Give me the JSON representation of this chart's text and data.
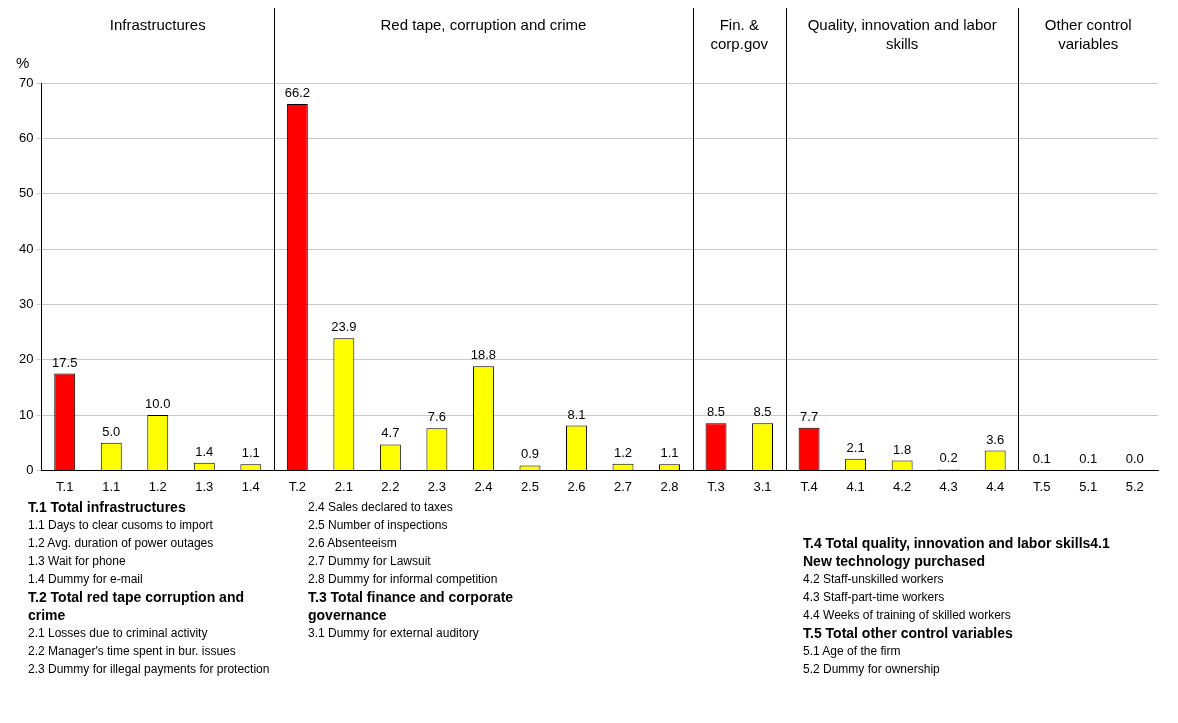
{
  "chart_data": {
    "type": "bar",
    "ylabel": "%",
    "categories": [
      "T.1",
      "1.1",
      "1.2",
      "1.3",
      "1.4",
      "T.2",
      "2.1",
      "2.2",
      "2.3",
      "2.4",
      "2.5",
      "2.6",
      "2.7",
      "2.8",
      "T.3",
      "3.1",
      "T.4",
      "4.1",
      "4.2",
      "4.3",
      "4.4",
      "T.5",
      "5.1",
      "5.2"
    ],
    "values": [
      17.5,
      5.0,
      10.0,
      1.4,
      1.1,
      66.2,
      23.9,
      4.7,
      7.6,
      18.8,
      0.9,
      8.1,
      1.2,
      1.1,
      8.5,
      8.5,
      7.7,
      2.1,
      1.8,
      0.2,
      3.6,
      0.1,
      0.1,
      0.0
    ],
    "colors": [
      "#ff0000",
      "#ffff00",
      "#ffff00",
      "#ffff00",
      "#ffff00",
      "#ff0000",
      "#ffff00",
      "#ffff00",
      "#ffff00",
      "#ffff00",
      "#ffff00",
      "#ffff00",
      "#ffff00",
      "#ffff00",
      "#ff0000",
      "#ffff00",
      "#ff0000",
      "#ffff00",
      "#ffff00",
      "#ffff00",
      "#ffff00",
      "#ff0000",
      "#ffff00",
      "#ffff00"
    ],
    "value_labels": [
      "17.5",
      "5.0",
      "10.0",
      "1.4",
      "1.1",
      "66.2",
      "23.9",
      "4.7",
      "7.6",
      "18.8",
      "0.9",
      "8.1",
      "1.2",
      "1.1",
      "8.5",
      "8.5",
      "7.7",
      "2.1",
      "1.8",
      "0.2",
      "3.6",
      "0.1",
      "0.1",
      "0.0"
    ],
    "ylim": [
      0,
      70
    ],
    "yticks": [
      0,
      10,
      20,
      30,
      40,
      50,
      60,
      70
    ],
    "grid": "y",
    "legend": false,
    "annotations": [
      "Infrastructures",
      "Red tape, corruption and crime",
      "Fin. & corp.gov",
      "Quality, innovation and labor skills",
      "Other control variables",
      "T.1 Total infrastructures",
      "1.1 Days to clear cusoms to import",
      "1.2 Avg. duration of power outages",
      "1.3 Wait for phone",
      "1.4 Dummy for e-mail",
      "T.2 Total red tape corruption and crime",
      "2.1 Losses due to criminal activity",
      "2.2 Manager's time spent in bur. issues",
      "2.3 Dummy for illegal payments for protection",
      "2.4 Sales declared to taxes",
      "2.5 Number of inspections",
      "2.6 Absenteeism",
      "2.7 Dummy for Lawsuit",
      "2.8 Dummy for informal competition",
      "T.3 Total finance and corporate governance",
      "3.1 Dummy for external auditory",
      "T.4 Total quality, innovation and labor skills4.1 New technology purchased",
      "4.2 Staff-unskilled workers",
      "4.3 Staff-part-time workers",
      "4.4 Weeks of training of skilled workers",
      "T.5 Total other control variables",
      "5.1 Age of the firm",
      "5.2 Dummy for ownership"
    ]
  }
}
